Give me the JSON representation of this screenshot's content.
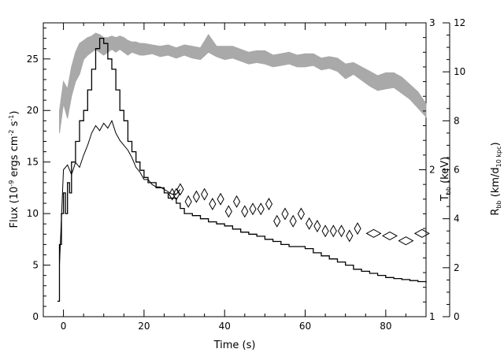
{
  "chart_data": {
    "type": "line",
    "xlabel": "Time (s)",
    "ylabel_left": {
      "main": "Flux (10",
      "exp1": "-9",
      "mid1": " ergs cm",
      "exp2": "-2",
      "mid2": " s",
      "exp3": "-1",
      "end": ")"
    },
    "ylabel_right1": {
      "main": "T",
      "sub": "bb",
      "end": " (keV)"
    },
    "ylabel_right2": {
      "main": "R",
      "sub": "bb",
      "mid": " (km/d",
      "sub2": "10 kpc",
      "end": ")"
    },
    "xlim": [
      -5,
      90
    ],
    "ylim_left": [
      0,
      28.5
    ],
    "ylim_right_kT": [
      1,
      3
    ],
    "ylim_right_R": [
      0,
      12
    ],
    "x_ticks": [
      "0",
      "20",
      "40",
      "60",
      "80"
    ],
    "y_ticks_left": [
      "0",
      "5",
      "10",
      "15",
      "20",
      "25"
    ],
    "y_ticks_right_kT": [
      "1",
      "2",
      "3"
    ],
    "y_ticks_right_R": [
      "0",
      "2",
      "4",
      "6",
      "8",
      "10",
      "12"
    ],
    "colors": {
      "flux": "#000000",
      "radius": "#000000",
      "temperature_band": "#a9a9a9"
    },
    "series": [
      {
        "key": "flux",
        "style": "step",
        "x": [
          -1.5,
          -1,
          -0.5,
          0,
          0.5,
          1,
          1.5,
          2,
          3,
          4,
          5,
          6,
          7,
          8,
          9,
          10,
          11,
          12,
          13,
          14,
          15,
          16,
          17,
          18,
          19,
          20,
          21,
          22,
          23,
          24,
          25,
          26,
          27,
          28,
          29,
          30,
          32,
          34,
          36,
          38,
          40,
          42,
          44,
          46,
          48,
          50,
          52,
          54,
          56,
          58,
          60,
          62,
          64,
          66,
          68,
          70,
          72,
          74,
          76,
          78,
          80,
          82,
          84,
          86,
          88,
          90
        ],
        "y": [
          1.5,
          7,
          10,
          12,
          10,
          13,
          12,
          15,
          17,
          19,
          20,
          22,
          24,
          26,
          27,
          26.5,
          25,
          24,
          22,
          20,
          19,
          17,
          16,
          15,
          14.2,
          13.5,
          13,
          13,
          12.5,
          12.5,
          12,
          11.5,
          11.5,
          11,
          10.5,
          10,
          9.8,
          9.5,
          9.2,
          9.0,
          8.8,
          8.5,
          8.2,
          8.0,
          7.8,
          7.5,
          7.3,
          7.0,
          6.8,
          6.8,
          6.6,
          6.2,
          5.9,
          5.6,
          5.3,
          5.0,
          4.6,
          4.4,
          4.2,
          4.0,
          3.8,
          3.7,
          3.6,
          3.5,
          3.4,
          3.3
        ]
      },
      {
        "key": "radius",
        "style": "line+diamond",
        "x": [
          -1,
          0,
          1,
          2,
          3,
          4,
          5,
          6,
          7,
          8,
          9,
          10,
          11,
          12,
          13,
          14,
          15,
          16,
          17,
          18,
          19,
          20,
          21,
          22,
          23,
          24,
          25,
          26,
          27,
          28,
          29,
          31,
          33,
          35,
          37,
          39,
          41,
          43,
          45,
          47,
          49,
          51,
          53,
          55,
          57,
          59,
          61,
          63,
          65,
          67,
          69,
          71,
          73,
          77,
          81,
          85,
          89
        ],
        "y": [
          2.1,
          6.0,
          6.2,
          5.8,
          6.3,
          6.1,
          6.6,
          7.0,
          7.5,
          7.8,
          7.6,
          7.9,
          7.7,
          8.0,
          7.5,
          7.2,
          7.0,
          6.8,
          6.5,
          6.1,
          5.9,
          5.6,
          5.6,
          5.4,
          5.3,
          5.3,
          5.2,
          5.1,
          5.0,
          5.0,
          5.2,
          4.7,
          4.9,
          5.0,
          4.6,
          4.8,
          4.3,
          4.7,
          4.3,
          4.4,
          4.4,
          4.6,
          3.9,
          4.2,
          3.9,
          4.2,
          3.8,
          3.7,
          3.5,
          3.5,
          3.5,
          3.3,
          3.6,
          3.4,
          3.3,
          3.1,
          3.4
        ]
      },
      {
        "key": "temperature_band",
        "style": "band",
        "x": [
          -1,
          0,
          1,
          2,
          3,
          4,
          5,
          6,
          7,
          8,
          9,
          10,
          11,
          12,
          13,
          14,
          15,
          16,
          17,
          18,
          19,
          20,
          22,
          24,
          26,
          28,
          30,
          32,
          34,
          36,
          38,
          40,
          42,
          44,
          46,
          48,
          50,
          52,
          54,
          56,
          58,
          60,
          62,
          64,
          66,
          68,
          70,
          72,
          74,
          76,
          78,
          80,
          82,
          84,
          86,
          88,
          90
        ],
        "y_low": [
          2.25,
          2.45,
          2.35,
          2.5,
          2.6,
          2.65,
          2.75,
          2.78,
          2.8,
          2.82,
          2.8,
          2.78,
          2.8,
          2.82,
          2.8,
          2.82,
          2.8,
          2.78,
          2.8,
          2.79,
          2.78,
          2.78,
          2.79,
          2.77,
          2.78,
          2.76,
          2.78,
          2.76,
          2.75,
          2.8,
          2.77,
          2.75,
          2.76,
          2.74,
          2.72,
          2.73,
          2.72,
          2.7,
          2.71,
          2.72,
          2.7,
          2.7,
          2.71,
          2.68,
          2.69,
          2.67,
          2.62,
          2.65,
          2.61,
          2.57,
          2.54,
          2.55,
          2.56,
          2.52,
          2.48,
          2.42,
          2.36
        ],
        "y_high": [
          2.4,
          2.6,
          2.55,
          2.7,
          2.8,
          2.86,
          2.88,
          2.9,
          2.91,
          2.93,
          2.92,
          2.9,
          2.9,
          2.91,
          2.9,
          2.91,
          2.9,
          2.88,
          2.87,
          2.87,
          2.86,
          2.86,
          2.85,
          2.84,
          2.85,
          2.83,
          2.85,
          2.84,
          2.83,
          2.92,
          2.84,
          2.84,
          2.84,
          2.82,
          2.8,
          2.81,
          2.81,
          2.78,
          2.79,
          2.8,
          2.78,
          2.79,
          2.79,
          2.76,
          2.77,
          2.76,
          2.72,
          2.73,
          2.7,
          2.67,
          2.64,
          2.66,
          2.66,
          2.63,
          2.58,
          2.53,
          2.45
        ]
      }
    ]
  }
}
